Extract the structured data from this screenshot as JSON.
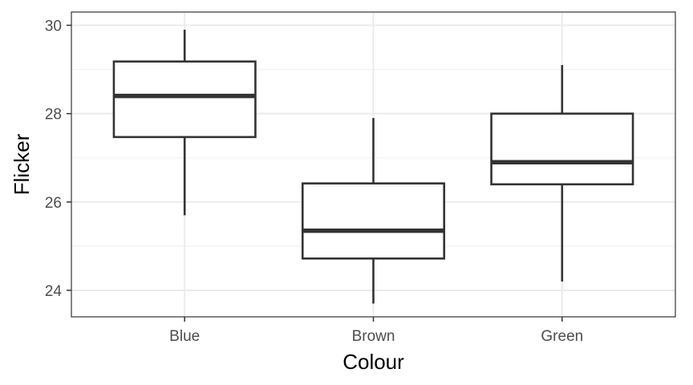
{
  "chart_data": {
    "type": "boxplot",
    "title": "",
    "xlabel": "Colour",
    "ylabel": "Flicker",
    "ylim": [
      23.4,
      30.3
    ],
    "yticks": [
      24,
      26,
      28,
      30
    ],
    "ytick_labels": [
      "24",
      "26",
      "28",
      "30"
    ],
    "grid": true,
    "categories": [
      "Blue",
      "Brown",
      "Green"
    ],
    "boxes": [
      {
        "category": "Blue",
        "whisker_low": 25.7,
        "q1": 27.47,
        "median": 28.4,
        "q3": 29.18,
        "whisker_high": 29.9
      },
      {
        "category": "Brown",
        "whisker_low": 23.7,
        "q1": 24.72,
        "median": 25.35,
        "q3": 26.42,
        "whisker_high": 27.9
      },
      {
        "category": "Green",
        "whisker_low": 24.2,
        "q1": 26.4,
        "median": 26.9,
        "q3": 28.0,
        "whisker_high": 29.1
      }
    ],
    "colors": {
      "box_stroke": "#333333",
      "grid_major": "#ebebeb",
      "grid_minor": "#f2f2f2",
      "panel_border": "#333333",
      "background": "#ffffff"
    }
  }
}
